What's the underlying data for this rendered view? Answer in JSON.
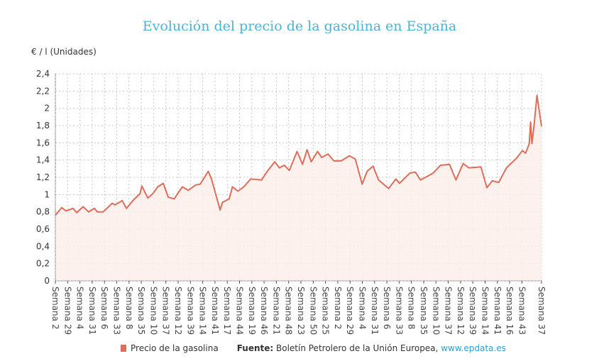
{
  "chart_data": {
    "type": "area",
    "title": "Evolución del precio de la gasolina en España",
    "ylabel": "€ / l (Unidades)",
    "xlabel": "",
    "ylim": [
      0,
      2.4
    ],
    "yticks": [
      "0",
      "0,2",
      "0,4",
      "0,6",
      "0,8",
      "1",
      "1,2",
      "1,4",
      "1,6",
      "1,8",
      "2",
      "2,2",
      "2,4"
    ],
    "xticks": [
      "Semana 2",
      "Semana 29",
      "Semana 4",
      "Semana 31",
      "Semana 6",
      "Semana 33",
      "Semana 8",
      "Semana 35",
      "Semana 10",
      "Semana 37",
      "Semana 12",
      "Semana 39",
      "Semana 14",
      "Semana 41",
      "Semana 17",
      "Semana 44",
      "Semana 19",
      "Semana 46",
      "Semana 21",
      "Semana 48",
      "Semana 23",
      "Semana 50",
      "Semana 25",
      "Semana 2",
      "Semana 29",
      "Semana 4",
      "Semana 31",
      "Semana 6",
      "Semana 33",
      "Semana 8",
      "Semana 35",
      "Semana 10",
      "Semana 37",
      "Semana 12",
      "Semana 39",
      "Semana 14",
      "Semana 41",
      "Semana 16",
      "Semana 43",
      "Semana 37"
    ],
    "xlim": [
      0,
      1068
    ],
    "grid": true,
    "legend_position": "bottom",
    "series": [
      {
        "name": "Precio de la gasolina",
        "color": "#e06c5a",
        "points": [
          [
            0,
            0.76
          ],
          [
            14,
            0.85
          ],
          [
            23,
            0.81
          ],
          [
            39,
            0.84
          ],
          [
            47,
            0.79
          ],
          [
            61,
            0.86
          ],
          [
            73,
            0.8
          ],
          [
            86,
            0.84
          ],
          [
            92,
            0.8
          ],
          [
            105,
            0.8
          ],
          [
            125,
            0.9
          ],
          [
            131,
            0.88
          ],
          [
            147,
            0.93
          ],
          [
            156,
            0.84
          ],
          [
            172,
            0.94
          ],
          [
            186,
            1.01
          ],
          [
            190,
            1.1
          ],
          [
            203,
            0.96
          ],
          [
            214,
            1.01
          ],
          [
            225,
            1.09
          ],
          [
            237,
            1.13
          ],
          [
            248,
            0.97
          ],
          [
            261,
            0.95
          ],
          [
            279,
            1.09
          ],
          [
            292,
            1.05
          ],
          [
            308,
            1.11
          ],
          [
            318,
            1.12
          ],
          [
            336,
            1.27
          ],
          [
            343,
            1.18
          ],
          [
            362,
            0.82
          ],
          [
            367,
            0.91
          ],
          [
            382,
            0.95
          ],
          [
            389,
            1.09
          ],
          [
            401,
            1.04
          ],
          [
            414,
            1.09
          ],
          [
            429,
            1.18
          ],
          [
            453,
            1.17
          ],
          [
            467,
            1.28
          ],
          [
            482,
            1.38
          ],
          [
            492,
            1.31
          ],
          [
            503,
            1.34
          ],
          [
            514,
            1.28
          ],
          [
            531,
            1.5
          ],
          [
            543,
            1.35
          ],
          [
            553,
            1.52
          ],
          [
            562,
            1.38
          ],
          [
            576,
            1.5
          ],
          [
            585,
            1.43
          ],
          [
            599,
            1.47
          ],
          [
            612,
            1.39
          ],
          [
            628,
            1.39
          ],
          [
            646,
            1.45
          ],
          [
            659,
            1.41
          ],
          [
            674,
            1.12
          ],
          [
            685,
            1.27
          ],
          [
            698,
            1.33
          ],
          [
            710,
            1.17
          ],
          [
            732,
            1.07
          ],
          [
            748,
            1.18
          ],
          [
            756,
            1.13
          ],
          [
            779,
            1.25
          ],
          [
            791,
            1.26
          ],
          [
            802,
            1.17
          ],
          [
            820,
            1.22
          ],
          [
            830,
            1.25
          ],
          [
            846,
            1.34
          ],
          [
            866,
            1.35
          ],
          [
            880,
            1.17
          ],
          [
            896,
            1.36
          ],
          [
            908,
            1.31
          ],
          [
            935,
            1.32
          ],
          [
            948,
            1.08
          ],
          [
            960,
            1.16
          ],
          [
            974,
            1.14
          ],
          [
            991,
            1.31
          ],
          [
            1013,
            1.42
          ],
          [
            1026,
            1.51
          ],
          [
            1033,
            1.48
          ],
          [
            1041,
            1.59
          ],
          [
            1044,
            1.84
          ],
          [
            1047,
            1.59
          ],
          [
            1052,
            1.82
          ],
          [
            1058,
            2.15
          ],
          [
            1068,
            1.79
          ]
        ]
      }
    ]
  },
  "footer": {
    "legend_label": "Precio de la gasolina",
    "source_label": "Fuente:",
    "source_text": " Boletín Petrolero de la Unión Europea, ",
    "source_link": "www.epdata.es"
  }
}
